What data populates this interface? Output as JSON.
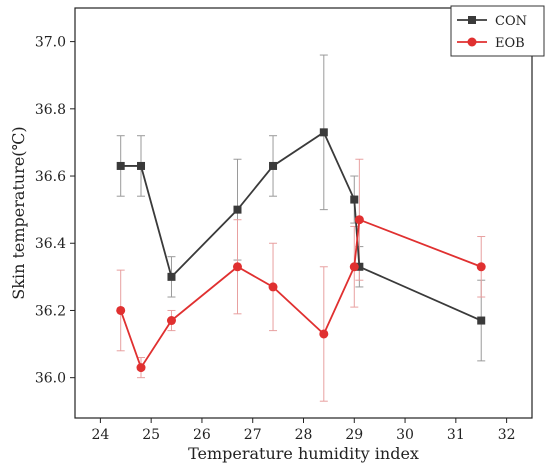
{
  "chart_data": {
    "type": "line",
    "title": "",
    "xlabel": "Temperature humidity index",
    "ylabel": "Skin temperature(℃)",
    "xlim": [
      23.5,
      32.5
    ],
    "ylim": [
      35.88,
      37.1
    ],
    "xticks": [
      24,
      25,
      26,
      27,
      28,
      29,
      30,
      31,
      32
    ],
    "yticks": [
      36.0,
      36.2,
      36.4,
      36.6,
      36.8,
      37.0
    ],
    "ytick_labels": [
      "36.0",
      "36.2",
      "36.4",
      "36.6",
      "36.8",
      "37.0"
    ],
    "grid": false,
    "legend_position": "top-right",
    "series": [
      {
        "name": "CON",
        "color": "#3a3a3a",
        "marker": "square",
        "x": [
          24.4,
          24.8,
          25.4,
          26.7,
          27.4,
          28.4,
          29.0,
          29.1,
          31.5
        ],
        "y": [
          36.63,
          36.63,
          36.3,
          36.5,
          36.63,
          36.73,
          36.53,
          36.33,
          36.17
        ],
        "error": [
          0.09,
          0.09,
          0.06,
          0.15,
          0.09,
          0.23,
          0.07,
          0.06,
          0.12
        ]
      },
      {
        "name": "EOB",
        "color": "#e03030",
        "marker": "circle",
        "x": [
          24.4,
          24.8,
          25.4,
          26.7,
          27.4,
          28.4,
          29.0,
          29.1,
          31.5
        ],
        "y": [
          36.2,
          36.03,
          36.17,
          36.33,
          36.27,
          36.13,
          36.33,
          36.47,
          36.33
        ],
        "error": [
          0.12,
          0.03,
          0.03,
          0.14,
          0.13,
          0.2,
          0.12,
          0.18,
          0.09
        ]
      }
    ]
  }
}
